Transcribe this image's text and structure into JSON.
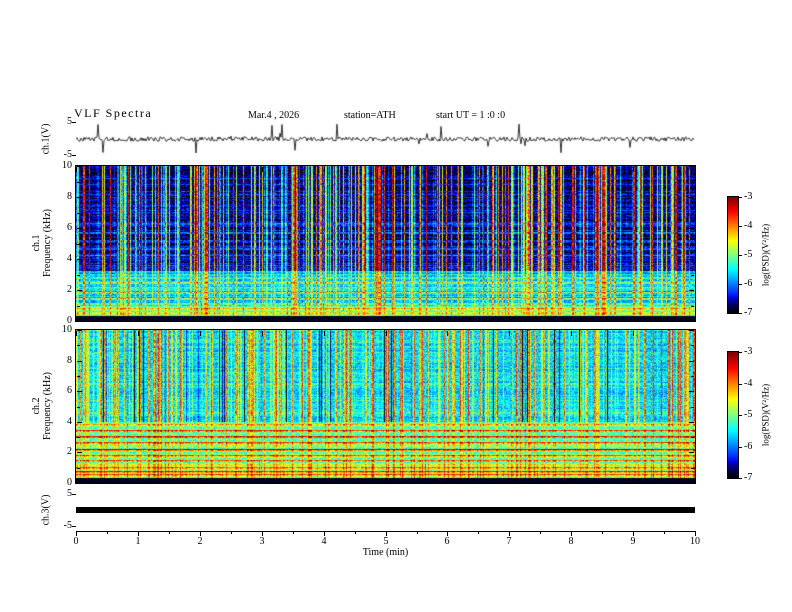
{
  "header": {
    "title": "VLF  Spectra",
    "date": "Mar.4  , 2026",
    "station": "station=ATH",
    "start_ut": "start UT =  1 :0 :0"
  },
  "panels": {
    "ch1_wave": {
      "label": "ch.1(V)",
      "ytop": "5",
      "ybottom": "-5"
    },
    "ch1_spec": {
      "label_line1": "ch.1",
      "label_line2": "Frequency (kHz)"
    },
    "ch2_spec": {
      "label_line1": "ch.2",
      "label_line2": "Frequency (kHz)"
    },
    "ch3_wave": {
      "label": "ch.3(V)",
      "ytop": "5",
      "ybottom": "-5"
    }
  },
  "axes": {
    "x_label": "Time (min)",
    "x_ticks": [
      "0",
      "1",
      "2",
      "3",
      "4",
      "5",
      "6",
      "7",
      "8",
      "9",
      "10"
    ],
    "spec_y_ticks": [
      "10",
      "8",
      "6",
      "4",
      "2",
      "0"
    ],
    "colorbar_label": "log(PSD)(V²/Hz)",
    "colorbar_ticks": [
      "-3",
      "-4",
      "-5",
      "-6",
      "-7"
    ]
  },
  "chart_data": [
    {
      "type": "line",
      "name": "ch.1 voltage waveform",
      "ylabel": "ch.1(V)",
      "ylim": [
        -5,
        5
      ],
      "xlim": [
        0,
        10
      ],
      "xlabel": "Time (min)",
      "description": "Continuous noisy black trace near 0 V across the full 10 minutes with frequent impulsive spikes reaching toward +5/-5 V."
    },
    {
      "type": "heatmap",
      "name": "ch.1 spectrogram",
      "xlabel": "Time (min)",
      "ylabel": "Frequency (kHz)",
      "xlim": [
        0,
        10
      ],
      "ylim": [
        0,
        10
      ],
      "zlabel": "log(PSD)(V²/Hz)",
      "zlim": [
        -7,
        -3
      ],
      "colormap": "jet",
      "legend_position": "right-colorbar",
      "description": "Dark-blue low-power background above ~3 kHz crossed by dense vertical sferic streaks (green/yellow/red). Brighter banded structure with many horizontal lines between ~0.3 and 3 kHz; near-black band at 0-0.3 kHz."
    },
    {
      "type": "heatmap",
      "name": "ch.2 spectrogram",
      "xlabel": "Time (min)",
      "ylabel": "Frequency (kHz)",
      "xlim": [
        0,
        10
      ],
      "ylim": [
        0,
        10
      ],
      "zlabel": "log(PSD)(V²/Hz)",
      "zlim": [
        -7,
        -3
      ],
      "colormap": "jet",
      "legend_position": "right-colorbar",
      "description": "Green/cyan background with vertical sferic streaks and occasional dark dropout columns above ~4 kHz; strong orange-red horizontal interference lines between ~0.5 and 4 kHz; near-black band at 0-0.3 kHz."
    },
    {
      "type": "line",
      "name": "ch.3 voltage waveform",
      "ylabel": "ch.3(V)",
      "ylim": [
        -5,
        5
      ],
      "xlim": [
        0,
        10
      ],
      "xlabel": "Time (min)",
      "values": "constant ~0 V (flat thick black line for the whole record)",
      "description": "Channel 3 is flat: a thick solid black horizontal bar at ~0 V from 0 to 10 min."
    }
  ]
}
